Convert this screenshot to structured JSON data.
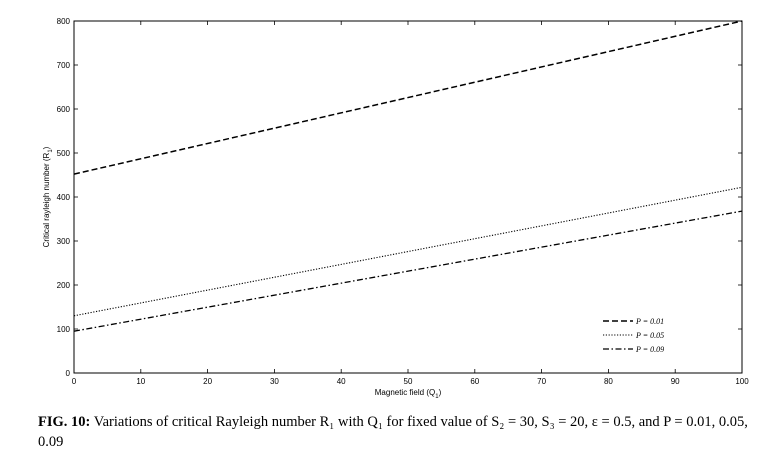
{
  "chart_data": {
    "type": "line",
    "xlabel": "Magnetic field (Q",
    "xlabel_sub": "1",
    "xlabel_end": ")",
    "ylabel": "Critical rayleigh number (R",
    "ylabel_sub": "1",
    "ylabel_end": ")",
    "xlim": [
      0,
      100
    ],
    "ylim": [
      0,
      800
    ],
    "xticks": [
      0,
      10,
      20,
      30,
      40,
      50,
      60,
      70,
      80,
      90,
      100
    ],
    "yticks": [
      0,
      100,
      200,
      300,
      400,
      500,
      600,
      700,
      800
    ],
    "grid": false,
    "legend_position": "bottom-right",
    "series": [
      {
        "name": "P = 0.01",
        "dash": "dashed",
        "x": [
          0,
          100
        ],
        "y": [
          452,
          800
        ]
      },
      {
        "name": "P = 0.05",
        "dash": "dotted",
        "x": [
          0,
          100
        ],
        "y": [
          130,
          422
        ]
      },
      {
        "name": "P = 0.09",
        "dash": "dashdot",
        "x": [
          0,
          100
        ],
        "y": [
          95,
          368
        ]
      }
    ]
  },
  "caption": {
    "label": "FIG. 10:",
    "text": "Variations of critical Rayleigh number R₁ with Q₁ for fixed value of S₂ = 30, S₃ = 20, ε = 0.5, and P = 0.01, 0.05, 0.09"
  }
}
